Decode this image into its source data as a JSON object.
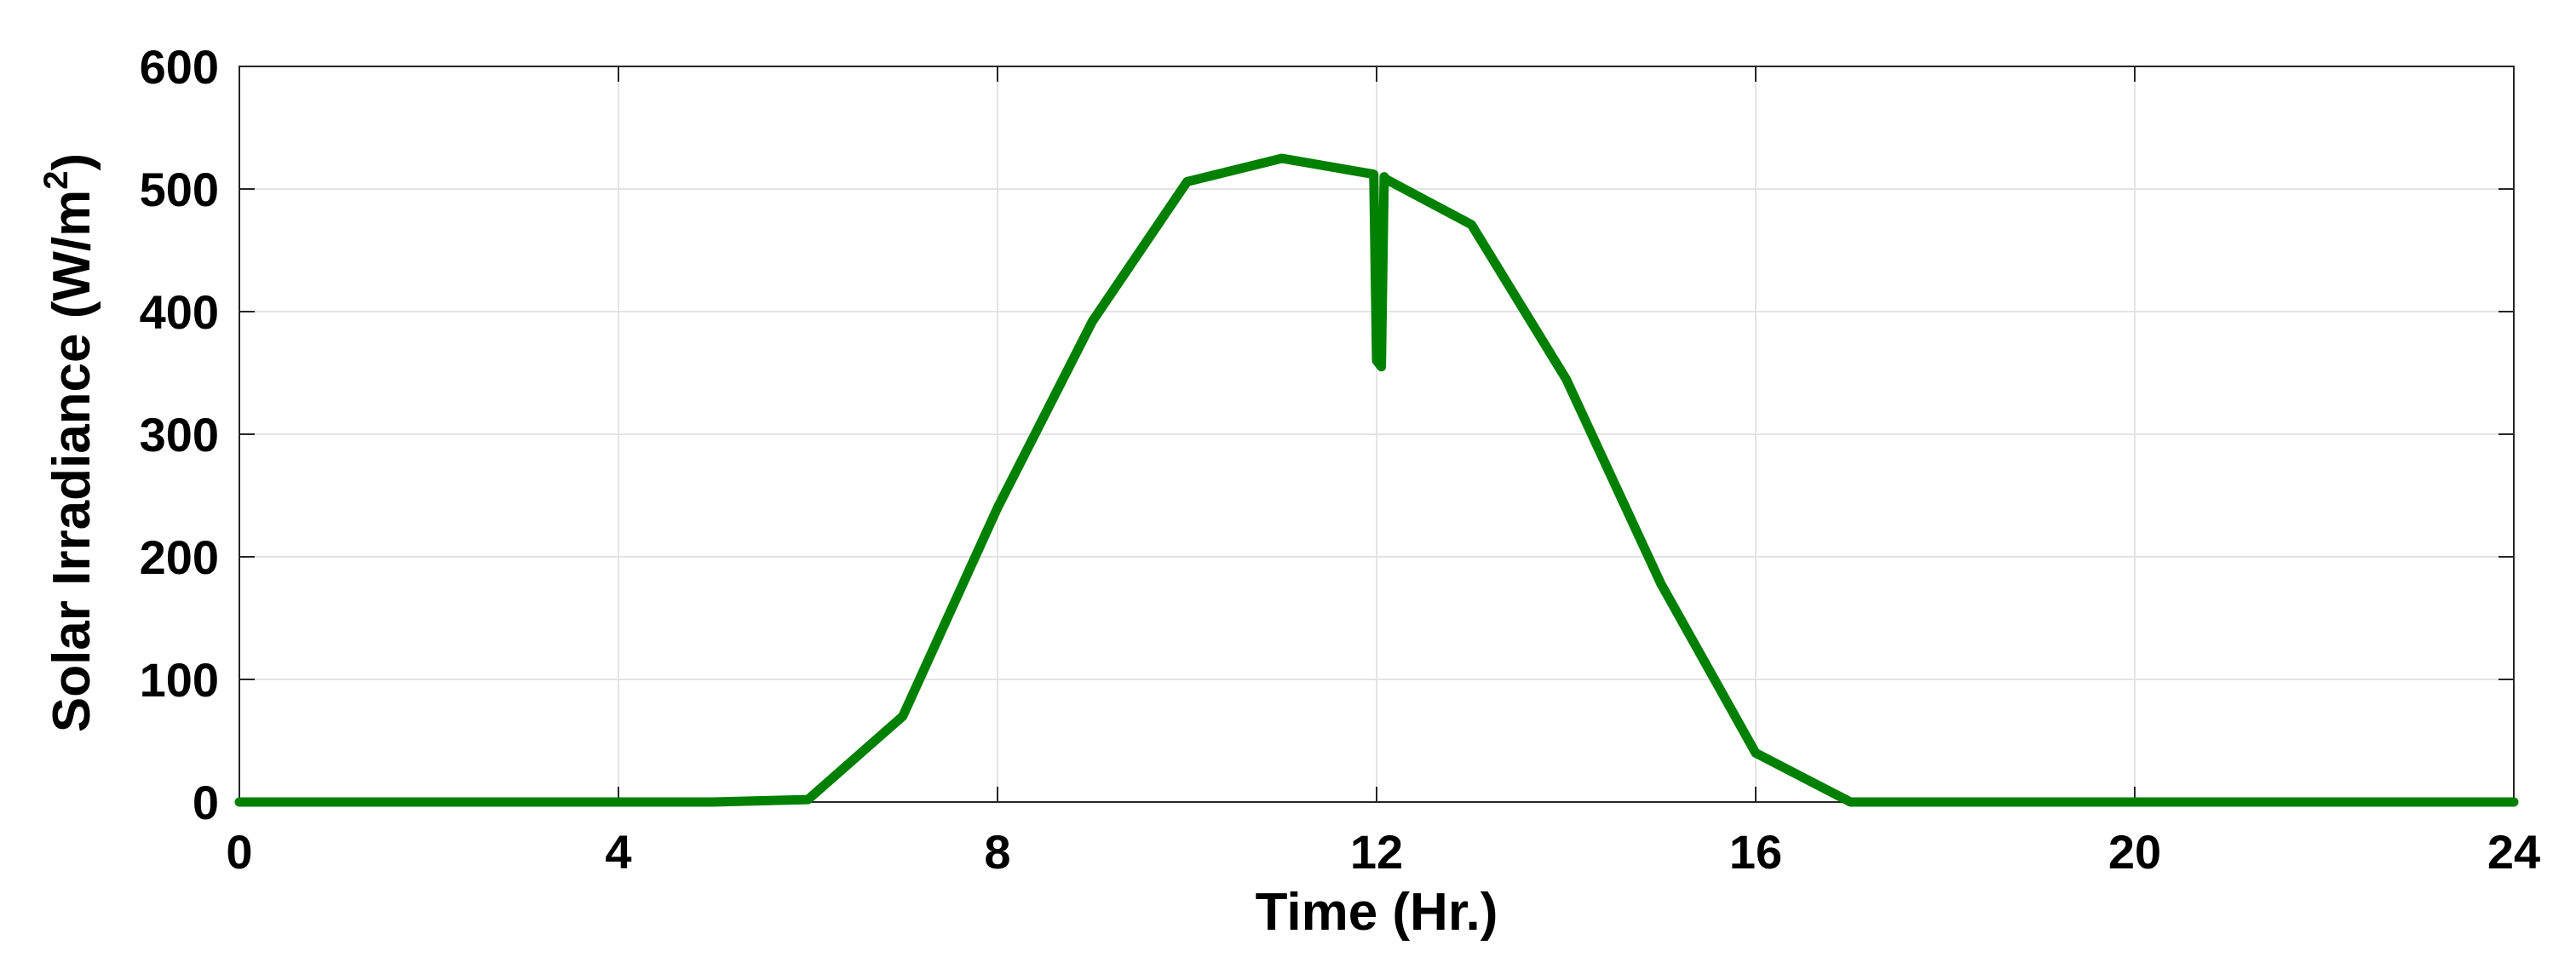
{
  "chart_data": {
    "type": "line",
    "xlabel": "Time (Hr.)",
    "ylabel_main": "Solar Irradiance (W/m",
    "ylabel_sup": "2",
    "ylabel_end": ")",
    "xlim": [
      0,
      24
    ],
    "ylim": [
      0,
      600
    ],
    "x_ticks": [
      0,
      4,
      8,
      12,
      16,
      20,
      24
    ],
    "y_ticks": [
      0,
      100,
      200,
      300,
      400,
      500,
      600
    ],
    "grid": true,
    "legend": false,
    "series": [
      {
        "color": "#008000",
        "x": [
          0,
          5,
          6,
          7,
          8,
          9,
          10,
          11,
          11.97,
          12.0,
          12.05,
          12.08,
          12.1,
          13,
          14,
          15,
          16,
          17,
          18,
          24
        ],
        "y": [
          0,
          0,
          2,
          70,
          240,
          392,
          506,
          525,
          512,
          360,
          355,
          510,
          508,
          471,
          345,
          178,
          40,
          0,
          0,
          0
        ]
      }
    ]
  }
}
